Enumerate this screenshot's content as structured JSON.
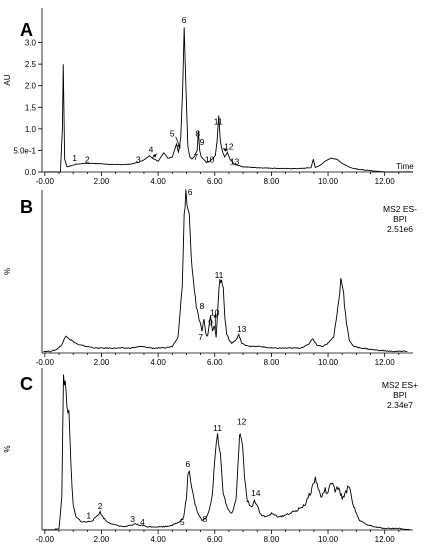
{
  "chart_data": [
    {
      "type": "line",
      "panel_label": "A",
      "xlabel": "Time",
      "ylabel": "AU",
      "xlim": [
        -0.1,
        13.0
      ],
      "ylim": [
        0,
        3.8
      ],
      "x_ticks": [
        "-0.00",
        "2.00",
        "4.00",
        "6.00",
        "8.00",
        "10.00",
        "12.00"
      ],
      "y_ticks": [
        {
          "value": 0.0,
          "label": "0.0"
        },
        {
          "value": 0.5,
          "label": "5.0e-1"
        },
        {
          "value": 1.0,
          "label": "1.0"
        },
        {
          "value": 1.5,
          "label": "1.5"
        },
        {
          "value": 2.0,
          "label": "2.0"
        },
        {
          "value": 2.5,
          "label": "2.5"
        },
        {
          "value": 3.0,
          "label": "3.0"
        }
      ],
      "info": [],
      "series": [
        {
          "x": [
            0,
            0.55,
            0.62,
            0.65,
            0.7,
            0.78,
            0.9,
            1.1,
            1.4,
            1.8,
            2.2,
            2.6,
            3.0,
            3.3,
            3.55,
            3.7,
            3.85,
            4.0,
            4.1,
            4.2,
            4.35,
            4.5,
            4.65,
            4.72,
            4.8,
            4.87,
            4.92,
            4.98,
            5.05,
            5.12,
            5.2,
            5.3,
            5.38,
            5.42,
            5.47,
            5.52,
            5.6,
            5.7,
            5.82,
            5.92,
            6.02,
            6.08,
            6.14,
            6.2,
            6.28,
            6.35,
            6.45,
            6.55,
            6.7,
            7.0,
            7.5,
            8.0,
            8.5,
            9.0,
            9.4,
            9.48,
            9.55,
            9.7,
            9.9,
            10.1,
            10.3,
            10.5,
            10.8,
            11.2,
            12.0,
            13.0
          ],
          "y": [
            0.0,
            0.0,
            1.0,
            2.5,
            0.3,
            0.12,
            0.14,
            0.18,
            0.2,
            0.2,
            0.18,
            0.17,
            0.18,
            0.22,
            0.3,
            0.38,
            0.3,
            0.25,
            0.35,
            0.45,
            0.32,
            0.35,
            0.65,
            0.45,
            0.8,
            2.0,
            3.35,
            2.0,
            0.6,
            0.35,
            0.3,
            0.38,
            0.5,
            0.95,
            0.5,
            0.35,
            0.3,
            0.22,
            0.25,
            0.3,
            0.38,
            0.7,
            1.3,
            0.7,
            0.45,
            0.35,
            0.45,
            0.28,
            0.18,
            0.12,
            0.1,
            0.09,
            0.08,
            0.08,
            0.1,
            0.3,
            0.1,
            0.15,
            0.25,
            0.32,
            0.3,
            0.2,
            0.1,
            0.05,
            0.0,
            0.0
          ]
        }
      ],
      "peak_labels": [
        {
          "text": "1",
          "x": 1.05,
          "y": 0.26
        },
        {
          "text": "2",
          "x": 1.5,
          "y": 0.22
        },
        {
          "text": "3",
          "x": 3.3,
          "y": 0.22
        },
        {
          "text": "4",
          "x": 3.75,
          "y": 0.45
        },
        {
          "text": "5",
          "x": 4.5,
          "y": 0.82
        },
        {
          "text": "6",
          "x": 4.92,
          "y": 3.45
        },
        {
          "text": "7",
          "x": 5.33,
          "y": 0.28
        },
        {
          "text": "8",
          "x": 5.4,
          "y": 0.82
        },
        {
          "text": "9",
          "x": 5.55,
          "y": 0.62
        },
        {
          "text": "10",
          "x": 5.82,
          "y": 0.22
        },
        {
          "text": "11",
          "x": 6.12,
          "y": 1.1
        },
        {
          "text": "12",
          "x": 6.5,
          "y": 0.52
        },
        {
          "text": "13",
          "x": 6.7,
          "y": 0.17
        }
      ],
      "arrows": [
        {
          "from_x": 3.78,
          "from_y": 0.32,
          "to_x": 3.95,
          "to_y": 0.42
        },
        {
          "from_x": 4.62,
          "from_y": 0.82,
          "to_x": 4.78,
          "to_y": 0.55
        },
        {
          "from_x": 6.45,
          "from_y": 0.48,
          "to_x": 6.3,
          "to_y": 0.55
        }
      ]
    },
    {
      "type": "line",
      "panel_label": "B",
      "xlabel": "",
      "ylabel": "%",
      "xlim": [
        -0.1,
        13.0
      ],
      "ylim": [
        0,
        100
      ],
      "x_ticks": [
        "-0.00",
        "2.00",
        "4.00",
        "6.00",
        "8.00",
        "10.00",
        "12.00"
      ],
      "y_ticks": [],
      "info": [
        "MS2 ES-",
        "BPI",
        "2.51e6"
      ],
      "series": [
        {
          "x": [
            -0.05,
            0.2,
            0.4,
            0.6,
            0.75,
            0.85,
            1.0,
            1.2,
            1.5,
            1.8,
            2.2,
            2.6,
            3.0,
            3.4,
            3.8,
            4.2,
            4.5,
            4.7,
            4.85,
            4.92,
            4.98,
            5.02,
            5.06,
            5.1,
            5.14,
            5.2,
            5.28,
            5.35,
            5.45,
            5.55,
            5.62,
            5.68,
            5.75,
            5.85,
            5.92,
            5.98,
            6.05,
            6.12,
            6.18,
            6.24,
            6.3,
            6.36,
            6.42,
            6.5,
            6.6,
            6.75,
            6.85,
            6.9,
            6.95,
            7.05,
            7.3,
            7.6,
            8.0,
            8.5,
            9.0,
            9.3,
            9.45,
            9.6,
            9.8,
            10.0,
            10.2,
            10.35,
            10.45,
            10.52,
            10.58,
            10.65,
            10.75,
            10.9,
            11.2,
            11.6,
            12.2,
            12.8
          ],
          "y": [
            1,
            1,
            2,
            5,
            11,
            9,
            7,
            5,
            4,
            3,
            3,
            3,
            3,
            4,
            3,
            3,
            4,
            10,
            40,
            88,
            98,
            96,
            92,
            85,
            70,
            55,
            40,
            28,
            20,
            14,
            22,
            12,
            10,
            24,
            14,
            16,
            10,
            32,
            45,
            44,
            40,
            22,
            12,
            8,
            6,
            8,
            11,
            9,
            6,
            5,
            4,
            4,
            3,
            3,
            3,
            5,
            9,
            5,
            4,
            6,
            10,
            28,
            45,
            42,
            30,
            18,
            8,
            4,
            3,
            2,
            1,
            1
          ]
        }
      ],
      "peak_labels": [
        {
          "text": "6",
          "x": 5.13,
          "y": 97
        },
        {
          "text": "7",
          "x": 5.5,
          "y": 8
        },
        {
          "text": "8",
          "x": 5.55,
          "y": 27
        },
        {
          "text": "9",
          "x": 5.85,
          "y": 17
        },
        {
          "text": "10",
          "x": 6.0,
          "y": 23
        },
        {
          "text": "11",
          "x": 6.15,
          "y": 46
        },
        {
          "text": "13",
          "x": 6.95,
          "y": 13
        }
      ],
      "arrows": [
        {
          "from_x": 6.02,
          "from_y": 14,
          "to_x": 6.02,
          "to_y": 24
        }
      ]
    },
    {
      "type": "line",
      "panel_label": "C",
      "xlabel": "",
      "ylabel": "%",
      "xlim": [
        -0.1,
        13.0
      ],
      "ylim": [
        0,
        100
      ],
      "x_ticks": [
        "-0.00",
        "2.00",
        "4.00",
        "6.00",
        "8.00",
        "10.00",
        "12.00"
      ],
      "y_ticks": [],
      "info": [
        "MS2 ES+",
        "BPI",
        "2.34e7"
      ],
      "series": [
        {
          "x": [
            -0.05,
            0.3,
            0.5,
            0.6,
            0.66,
            0.72,
            0.78,
            0.85,
            0.92,
            1.0,
            1.1,
            1.3,
            1.5,
            1.7,
            1.85,
            1.95,
            2.05,
            2.2,
            2.5,
            2.8,
            3.1,
            3.2,
            3.3,
            3.45,
            3.6,
            3.9,
            4.2,
            4.5,
            4.75,
            4.9,
            5.0,
            5.05,
            5.1,
            5.15,
            5.25,
            5.4,
            5.55,
            5.7,
            5.8,
            5.9,
            6.0,
            6.05,
            6.1,
            6.15,
            6.2,
            6.3,
            6.45,
            6.6,
            6.75,
            6.85,
            6.9,
            6.95,
            7.05,
            7.15,
            7.3,
            7.4,
            7.5,
            7.6,
            7.8,
            8.0,
            8.3,
            8.6,
            8.9,
            9.2,
            9.4,
            9.55,
            9.65,
            9.75,
            9.9,
            10.0,
            10.1,
            10.25,
            10.35,
            10.5,
            10.6,
            10.75,
            10.85,
            11.0,
            11.1,
            11.3,
            11.6,
            12.0,
            12.5,
            12.9
          ],
          "y": [
            0,
            0,
            1,
            20,
            95,
            90,
            80,
            70,
            40,
            15,
            8,
            5,
            5,
            6,
            9,
            11,
            8,
            5,
            3,
            2,
            3,
            4,
            3,
            3,
            2,
            2,
            2,
            3,
            5,
            8,
            20,
            34,
            36,
            30,
            20,
            10,
            6,
            8,
            12,
            20,
            42,
            56,
            58,
            54,
            45,
            22,
            14,
            10,
            18,
            50,
            62,
            58,
            32,
            18,
            14,
            18,
            16,
            10,
            8,
            10,
            8,
            10,
            12,
            16,
            24,
            32,
            26,
            20,
            25,
            22,
            30,
            24,
            26,
            20,
            22,
            28,
            18,
            10,
            6,
            4,
            2,
            1,
            1,
            0
          ]
        }
      ],
      "peak_labels": [
        {
          "text": "1",
          "x": 1.55,
          "y": 7
        },
        {
          "text": "2",
          "x": 1.95,
          "y": 13
        },
        {
          "text": "3",
          "x": 3.1,
          "y": 5
        },
        {
          "text": "4",
          "x": 3.45,
          "y": 3
        },
        {
          "text": "5",
          "x": 4.85,
          "y": 3
        },
        {
          "text": "6",
          "x": 5.05,
          "y": 39
        },
        {
          "text": "8",
          "x": 5.65,
          "y": 5
        },
        {
          "text": "11",
          "x": 6.1,
          "y": 61
        },
        {
          "text": "12",
          "x": 6.95,
          "y": 65
        },
        {
          "text": "14",
          "x": 7.45,
          "y": 21
        }
      ],
      "arrows": []
    }
  ]
}
